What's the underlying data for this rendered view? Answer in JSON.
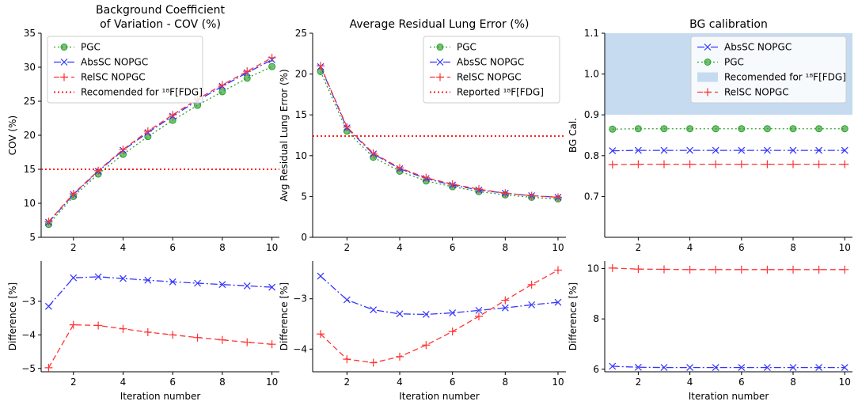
{
  "figure": {
    "xlabel": "Iteration number"
  },
  "chart_data": [
    {
      "id": "cov-top",
      "type": "line",
      "title_lines": [
        "Background Coefficient",
        "of Variation - COV (%)"
      ],
      "ylabel": "COV (%)",
      "xlabel": "",
      "xlim": [
        0.7,
        10.3
      ],
      "ylim": [
        5,
        35
      ],
      "xticks": [
        2,
        4,
        6,
        8,
        10
      ],
      "yticks": [
        5,
        10,
        15,
        20,
        25,
        30,
        35
      ],
      "x": [
        1,
        2,
        3,
        4,
        5,
        6,
        7,
        8,
        9,
        10
      ],
      "series": [
        {
          "name": "PGC",
          "color": "#2ca02c",
          "style": "dotted",
          "marker": "circle",
          "values": [
            6.9,
            11.0,
            14.3,
            17.2,
            19.8,
            22.2,
            24.4,
            26.4,
            28.4,
            30.1
          ]
        },
        {
          "name": "AbsSC NOPGC",
          "color": "#3333ff",
          "style": "dashdot",
          "marker": "x",
          "values": [
            7.2,
            11.3,
            14.7,
            17.8,
            20.4,
            22.8,
            25.1,
            27.2,
            29.2,
            31.1
          ]
        },
        {
          "name": "RelSC NOPGC",
          "color": "#ff3333",
          "style": "dashed",
          "marker": "plus",
          "values": [
            7.3,
            11.4,
            14.8,
            17.9,
            20.6,
            23.0,
            25.3,
            27.4,
            29.4,
            31.4
          ]
        }
      ],
      "hlines": [
        {
          "name": "Recomended for ¹⁸F[FDG]",
          "color": "#ff0000",
          "style": "dotted",
          "value": 15
        }
      ],
      "legend": {
        "position": "top-left",
        "entries": [
          {
            "label": "PGC",
            "ref": "PGC"
          },
          {
            "label": "AbsSC NOPGC",
            "ref": "AbsSC NOPGC"
          },
          {
            "label": "RelSC NOPGC",
            "ref": "RelSC NOPGC"
          },
          {
            "label": "Recomended for ¹⁸F[FDG]",
            "ref": "hline"
          }
        ]
      }
    },
    {
      "id": "lung-top",
      "type": "line",
      "title_lines": [
        "Average Residual Lung Error (%)"
      ],
      "ylabel": "Avg Residual Lung Error (%)",
      "xlabel": "",
      "xlim": [
        0.7,
        10.3
      ],
      "ylim": [
        0,
        25
      ],
      "xticks": [
        2,
        4,
        6,
        8,
        10
      ],
      "yticks": [
        0,
        5,
        10,
        15,
        20,
        25
      ],
      "x": [
        1,
        2,
        3,
        4,
        5,
        6,
        7,
        8,
        9,
        10
      ],
      "series": [
        {
          "name": "PGC",
          "color": "#2ca02c",
          "style": "dotted",
          "marker": "circle",
          "values": [
            20.3,
            13.0,
            9.8,
            8.1,
            6.9,
            6.2,
            5.6,
            5.2,
            4.9,
            4.7
          ]
        },
        {
          "name": "AbsSC NOPGC",
          "color": "#3333ff",
          "style": "dashdot",
          "marker": "x",
          "values": [
            20.9,
            13.4,
            10.2,
            8.4,
            7.2,
            6.4,
            5.8,
            5.4,
            5.1,
            4.9
          ]
        },
        {
          "name": "RelSC NOPGC",
          "color": "#ff3333",
          "style": "dashed",
          "marker": "plus",
          "values": [
            21.0,
            13.5,
            10.3,
            8.5,
            7.3,
            6.5,
            5.9,
            5.4,
            5.1,
            4.9
          ]
        }
      ],
      "hlines": [
        {
          "name": "Reported ¹⁸F[FDG]",
          "color": "#ff0000",
          "style": "dotted",
          "value": 12.4
        }
      ],
      "legend": {
        "position": "top-right",
        "entries": [
          {
            "label": "PGC",
            "ref": "PGC"
          },
          {
            "label": "AbsSC NOPGC",
            "ref": "AbsSC NOPGC"
          },
          {
            "label": "RelSC NOPGC",
            "ref": "RelSC NOPGC"
          },
          {
            "label": "Reported ¹⁸F[FDG]",
            "ref": "hline"
          }
        ]
      }
    },
    {
      "id": "bg-top",
      "type": "line",
      "title_lines": [
        "BG calibration"
      ],
      "ylabel": "BG Cal.",
      "xlabel": "",
      "xlim": [
        0.7,
        10.3
      ],
      "ylim": [
        0.6,
        1.1
      ],
      "xticks": [
        2,
        4,
        6,
        8,
        10
      ],
      "yticks": [
        0.7,
        0.8,
        0.9,
        1.0,
        1.1
      ],
      "ytick_labels": [
        "0.7",
        "0.8",
        "0.9",
        "1.0",
        "1.1"
      ],
      "x": [
        1,
        2,
        3,
        4,
        5,
        6,
        7,
        8,
        9,
        10
      ],
      "band": {
        "name": "Recomended for ¹⁸F[FDG]",
        "color": "#c6dbef",
        "from": 0.9,
        "to": 1.1
      },
      "series": [
        {
          "name": "AbsSC NOPGC",
          "color": "#3333ff",
          "style": "dashdot",
          "marker": "x",
          "values": [
            0.812,
            0.813,
            0.813,
            0.813,
            0.813,
            0.813,
            0.813,
            0.813,
            0.813,
            0.813
          ]
        },
        {
          "name": "PGC",
          "color": "#2ca02c",
          "style": "dotted",
          "marker": "circle",
          "values": [
            0.865,
            0.866,
            0.866,
            0.866,
            0.866,
            0.866,
            0.866,
            0.866,
            0.866,
            0.866
          ]
        },
        {
          "name": "RelSC NOPGC",
          "color": "#ff3333",
          "style": "dashed",
          "marker": "plus",
          "values": [
            0.778,
            0.779,
            0.779,
            0.779,
            0.779,
            0.779,
            0.779,
            0.779,
            0.779,
            0.779
          ]
        }
      ],
      "hlines": [],
      "legend": {
        "position": "top-right",
        "entries": [
          {
            "label": "AbsSC NOPGC",
            "ref": "AbsSC NOPGC"
          },
          {
            "label": "PGC",
            "ref": "PGC"
          },
          {
            "label": "Recomended for ¹⁸F[FDG]",
            "ref": "band"
          },
          {
            "label": "RelSC NOPGC",
            "ref": "RelSC NOPGC"
          }
        ]
      }
    },
    {
      "id": "cov-diff",
      "type": "line",
      "title_lines": [],
      "ylabel": "Difference [%]",
      "xlabel": "Iteration number",
      "xlim": [
        0.7,
        10.3
      ],
      "ylim": [
        -5.1,
        -1.8
      ],
      "xticks": [
        2,
        4,
        6,
        8,
        10
      ],
      "yticks": [
        -5,
        -4,
        -3
      ],
      "x": [
        1,
        2,
        3,
        4,
        5,
        6,
        7,
        8,
        9,
        10
      ],
      "series": [
        {
          "name": "AbsSC NOPGC",
          "color": "#3333ff",
          "style": "dashdot",
          "marker": "x",
          "values": [
            -3.15,
            -2.3,
            -2.27,
            -2.32,
            -2.37,
            -2.42,
            -2.46,
            -2.5,
            -2.54,
            -2.58
          ]
        },
        {
          "name": "RelSC NOPGC",
          "color": "#ff3333",
          "style": "dashed",
          "marker": "plus",
          "values": [
            -4.98,
            -3.7,
            -3.72,
            -3.82,
            -3.92,
            -4.0,
            -4.08,
            -4.15,
            -4.22,
            -4.28
          ]
        }
      ],
      "hlines": []
    },
    {
      "id": "lung-diff",
      "type": "line",
      "title_lines": [],
      "ylabel": "Difference [%]",
      "xlabel": "Iteration number",
      "xlim": [
        0.7,
        10.3
      ],
      "ylim": [
        -4.45,
        -2.25
      ],
      "xticks": [
        2,
        4,
        6,
        8,
        10
      ],
      "yticks": [
        -4,
        -3
      ],
      "x": [
        1,
        2,
        3,
        4,
        5,
        6,
        7,
        8,
        9,
        10
      ],
      "series": [
        {
          "name": "AbsSC NOPGC",
          "color": "#3333ff",
          "style": "dashdot",
          "marker": "x",
          "values": [
            -2.55,
            -3.02,
            -3.22,
            -3.3,
            -3.31,
            -3.28,
            -3.23,
            -3.18,
            -3.12,
            -3.07
          ]
        },
        {
          "name": "RelSC NOPGC",
          "color": "#ff3333",
          "style": "dashed",
          "marker": "plus",
          "values": [
            -3.7,
            -4.2,
            -4.27,
            -4.15,
            -3.92,
            -3.65,
            -3.35,
            -3.03,
            -2.72,
            -2.43
          ]
        }
      ],
      "hlines": []
    },
    {
      "id": "bg-diff",
      "type": "line",
      "title_lines": [],
      "ylabel": "Difference [%]",
      "xlabel": "Iteration number",
      "xlim": [
        0.7,
        10.3
      ],
      "ylim": [
        5.9,
        10.3
      ],
      "xticks": [
        2,
        4,
        6,
        8,
        10
      ],
      "yticks": [
        6,
        8,
        10
      ],
      "x": [
        1,
        2,
        3,
        4,
        5,
        6,
        7,
        8,
        9,
        10
      ],
      "series": [
        {
          "name": "AbsSC NOPGC",
          "color": "#3333ff",
          "style": "dashdot",
          "marker": "x",
          "values": [
            6.12,
            6.08,
            6.07,
            6.07,
            6.07,
            6.07,
            6.07,
            6.07,
            6.07,
            6.07
          ]
        },
        {
          "name": "RelSC NOPGC",
          "color": "#ff3333",
          "style": "dashed",
          "marker": "plus",
          "values": [
            10.02,
            9.98,
            9.97,
            9.96,
            9.96,
            9.96,
            9.96,
            9.96,
            9.96,
            9.96
          ]
        }
      ],
      "hlines": []
    }
  ]
}
